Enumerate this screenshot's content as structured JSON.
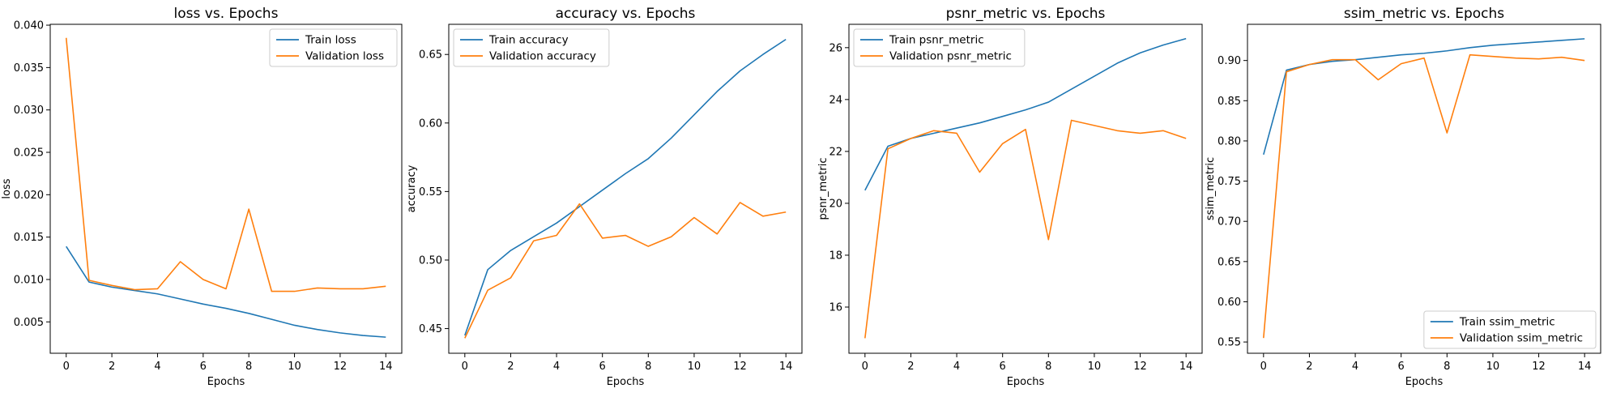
{
  "chart_data": [
    {
      "type": "line",
      "title": "loss vs. Epochs",
      "xlabel": "Epochs",
      "ylabel": "loss",
      "xlim": [
        -0.7,
        14.7
      ],
      "ylim": [
        0.0013,
        0.0401
      ],
      "xticks": [
        0,
        2,
        4,
        6,
        8,
        10,
        12,
        14
      ],
      "yticks": [
        0.005,
        0.01,
        0.015,
        0.02,
        0.025,
        0.03,
        0.035,
        0.04
      ],
      "ytick_labels": [
        "0.005",
        "0.010",
        "0.015",
        "0.020",
        "0.025",
        "0.030",
        "0.035",
        "0.040"
      ],
      "legend": "top-right",
      "x": [
        0,
        1,
        2,
        3,
        4,
        5,
        6,
        7,
        8,
        9,
        10,
        11,
        12,
        13,
        14
      ],
      "series": [
        {
          "name": "Train loss",
          "color": "#1f77b4",
          "values": [
            0.0139,
            0.0097,
            0.0091,
            0.0087,
            0.0083,
            0.0077,
            0.0071,
            0.0066,
            0.006,
            0.0053,
            0.0046,
            0.0041,
            0.0037,
            0.0034,
            0.0032
          ]
        },
        {
          "name": "Validation loss",
          "color": "#ff7f0e",
          "values": [
            0.0385,
            0.0099,
            0.0093,
            0.0088,
            0.0089,
            0.0121,
            0.01,
            0.0089,
            0.0183,
            0.0086,
            0.0086,
            0.009,
            0.0089,
            0.0089,
            0.0092
          ]
        }
      ]
    },
    {
      "type": "line",
      "title": "accuracy vs. Epochs",
      "xlabel": "Epochs",
      "ylabel": "accuracy",
      "xlim": [
        -0.7,
        14.7
      ],
      "ylim": [
        0.432,
        0.672
      ],
      "xticks": [
        0,
        2,
        4,
        6,
        8,
        10,
        12,
        14
      ],
      "yticks": [
        0.45,
        0.5,
        0.55,
        0.6,
        0.65
      ],
      "ytick_labels": [
        "0.45",
        "0.50",
        "0.55",
        "0.60",
        "0.65"
      ],
      "legend": "top-left",
      "x": [
        0,
        1,
        2,
        3,
        4,
        5,
        6,
        7,
        8,
        9,
        10,
        11,
        12,
        13,
        14
      ],
      "series": [
        {
          "name": "Train accuracy",
          "color": "#1f77b4",
          "values": [
            0.445,
            0.493,
            0.507,
            0.517,
            0.527,
            0.539,
            0.551,
            0.563,
            0.574,
            0.589,
            0.606,
            0.623,
            0.638,
            0.65,
            0.661
          ]
        },
        {
          "name": "Validation accuracy",
          "color": "#ff7f0e",
          "values": [
            0.443,
            0.478,
            0.487,
            0.514,
            0.518,
            0.541,
            0.516,
            0.518,
            0.51,
            0.517,
            0.531,
            0.519,
            0.542,
            0.532,
            0.535
          ]
        }
      ]
    },
    {
      "type": "line",
      "title": "psnr_metric vs. Epochs",
      "xlabel": "Epochs",
      "ylabel": "psnr_metric",
      "xlim": [
        -0.7,
        14.7
      ],
      "ylim": [
        14.22,
        26.9
      ],
      "xticks": [
        0,
        2,
        4,
        6,
        8,
        10,
        12,
        14
      ],
      "yticks": [
        16,
        18,
        20,
        22,
        24,
        26
      ],
      "ytick_labels": [
        "16",
        "18",
        "20",
        "22",
        "24",
        "26"
      ],
      "legend": "top-left",
      "x": [
        0,
        1,
        2,
        3,
        4,
        5,
        6,
        7,
        8,
        9,
        10,
        11,
        12,
        13,
        14
      ],
      "series": [
        {
          "name": "Train psnr_metric",
          "color": "#1f77b4",
          "values": [
            20.5,
            22.2,
            22.5,
            22.7,
            22.9,
            23.1,
            23.35,
            23.6,
            23.9,
            24.4,
            24.9,
            25.4,
            25.8,
            26.1,
            26.35
          ]
        },
        {
          "name": "Validation psnr_metric",
          "color": "#ff7f0e",
          "values": [
            14.8,
            22.1,
            22.5,
            22.8,
            22.7,
            21.2,
            22.3,
            22.85,
            18.6,
            23.2,
            23.0,
            22.8,
            22.7,
            22.8,
            22.5
          ]
        }
      ]
    },
    {
      "type": "line",
      "title": "ssim_metric vs. Epochs",
      "xlabel": "Epochs",
      "ylabel": "ssim_metric",
      "xlim": [
        -0.7,
        14.7
      ],
      "ylim": [
        0.536,
        0.945
      ],
      "xticks": [
        0,
        2,
        4,
        6,
        8,
        10,
        12,
        14
      ],
      "yticks": [
        0.55,
        0.6,
        0.65,
        0.7,
        0.75,
        0.8,
        0.85,
        0.9
      ],
      "ytick_labels": [
        "0.55",
        "0.60",
        "0.65",
        "0.70",
        "0.75",
        "0.80",
        "0.85",
        "0.90"
      ],
      "legend": "bottom-right",
      "x": [
        0,
        1,
        2,
        3,
        4,
        5,
        6,
        7,
        8,
        9,
        10,
        11,
        12,
        13,
        14
      ],
      "series": [
        {
          "name": "Train ssim_metric",
          "color": "#1f77b4",
          "values": [
            0.783,
            0.888,
            0.895,
            0.899,
            0.901,
            0.904,
            0.907,
            0.909,
            0.912,
            0.916,
            0.919,
            0.921,
            0.923,
            0.925,
            0.927
          ]
        },
        {
          "name": "Validation ssim_metric",
          "color": "#ff7f0e",
          "values": [
            0.555,
            0.886,
            0.895,
            0.901,
            0.901,
            0.876,
            0.896,
            0.903,
            0.81,
            0.907,
            0.905,
            0.903,
            0.902,
            0.904,
            0.9
          ]
        }
      ]
    }
  ]
}
